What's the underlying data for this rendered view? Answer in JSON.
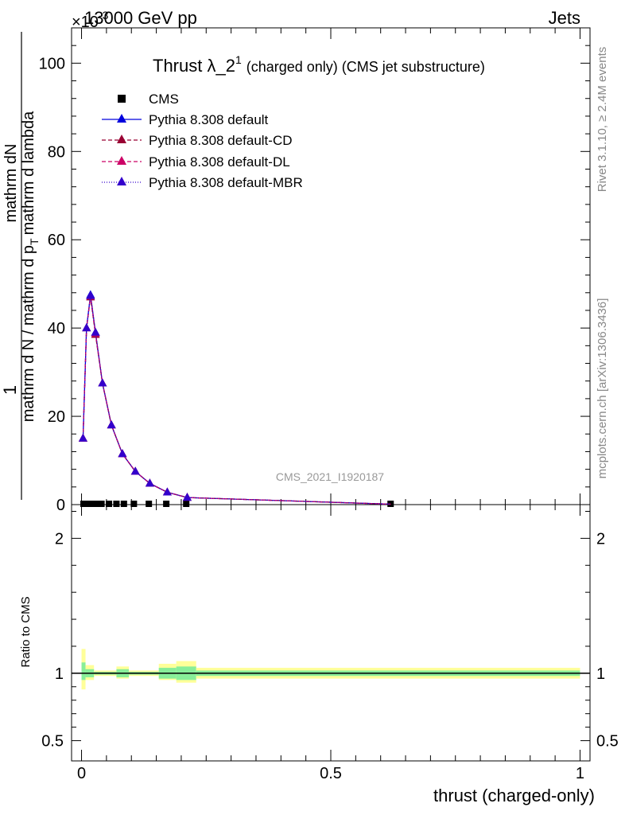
{
  "header": {
    "left": "13000 GeV pp",
    "right": "Jets",
    "exponent": "×10",
    "exponent_power": "-3"
  },
  "side_labels": {
    "rivet": "Rivet 3.1.10, ≥ 2.4M events",
    "mcplots": "mcplots.cern.ch [arXiv:1306.3436]"
  },
  "watermark": "CMS_2021_I1920187",
  "chart_data": [
    {
      "type": "line",
      "title": "Thrust λ_2",
      "title_sup": "1",
      "title_suffix": "(charged only) (CMS jet substructure)",
      "xlabel": "",
      "ylabel_num": "1",
      "ylabel_top": "mathrm d",
      "ylabel_top2": "N",
      "ylabel_bottom": "mathrm d N / mathrm d p",
      "ylabel_bottom2": "mathrm d p",
      "ylabel_bottom3": "mathrm d lambda",
      "ylabel_sub": "T",
      "ylabel_mid": "mathrm d",
      "xlim": [
        -0.02,
        1.02
      ],
      "ylim": [
        0,
        108
      ],
      "yticks": [
        0,
        20,
        40,
        60,
        80,
        100
      ],
      "yticklabels": [
        "0",
        "20",
        "40",
        "60",
        "80",
        "100"
      ],
      "legend": [
        "CMS",
        "Pythia 8.308 default",
        "Pythia 8.308 default-CD",
        "Pythia 8.308 default-DL",
        "Pythia 8.308 default-MBR"
      ],
      "legend_position": "top-left",
      "x": [
        0.004,
        0.01,
        0.02,
        0.03,
        0.04,
        0.055,
        0.07,
        0.085,
        0.105,
        0.135,
        0.17,
        0.21,
        0.62
      ],
      "series": [
        {
          "name": "CMS",
          "marker": "square",
          "color": "#000000",
          "x": [
            0.004,
            0.01,
            0.02,
            0.03,
            0.04,
            0.055,
            0.07,
            0.085,
            0.105,
            0.135,
            0.17,
            0.21,
            0.62
          ],
          "values": [
            0,
            0,
            0,
            0,
            0,
            0,
            0,
            0,
            0,
            0,
            0,
            0,
            0
          ]
        },
        {
          "name": "Pythia 8.308 default",
          "marker": "triangle",
          "color": "#0000dd",
          "dash": "",
          "x": [
            0.003,
            0.01,
            0.018,
            0.028,
            0.042,
            0.06,
            0.082,
            0.108,
            0.137,
            0.172,
            0.212,
            0.62
          ],
          "values": [
            15,
            40,
            47.5,
            39,
            27.5,
            18,
            11.5,
            7.5,
            4.8,
            2.8,
            1.6,
            0.1
          ]
        },
        {
          "name": "Pythia 8.308 default-CD",
          "marker": "triangle",
          "color": "#990033",
          "dash": "5,3",
          "x": [
            0.003,
            0.01,
            0.018,
            0.028,
            0.042,
            0.06,
            0.082,
            0.108,
            0.137,
            0.172,
            0.212,
            0.62
          ],
          "values": [
            15,
            40,
            47,
            38.5,
            27.5,
            18,
            11.5,
            7.5,
            4.8,
            2.8,
            1.6,
            0.1
          ]
        },
        {
          "name": "Pythia 8.308 default-DL",
          "marker": "triangle",
          "color": "#cc0066",
          "dash": "5,3",
          "x": [
            0.003,
            0.01,
            0.018,
            0.028,
            0.042,
            0.06,
            0.082,
            0.108,
            0.137,
            0.172,
            0.212,
            0.62
          ],
          "values": [
            15,
            40,
            47.2,
            38.8,
            27.5,
            18,
            11.5,
            7.5,
            4.8,
            2.8,
            1.6,
            0.1
          ]
        },
        {
          "name": "Pythia 8.308 default-MBR",
          "marker": "triangle",
          "color": "#3300cc",
          "dash": "1,2",
          "x": [
            0.003,
            0.01,
            0.018,
            0.028,
            0.042,
            0.06,
            0.082,
            0.108,
            0.137,
            0.172,
            0.212,
            0.62
          ],
          "values": [
            15,
            40,
            47.3,
            39,
            27.5,
            18,
            11.5,
            7.5,
            4.8,
            2.8,
            1.6,
            0.1
          ]
        }
      ]
    },
    {
      "type": "line",
      "title": "",
      "xlabel": "thrust (charged-only)",
      "ylabel": "Ratio to CMS",
      "xlim": [
        -0.02,
        1.02
      ],
      "ylim": [
        0.35,
        2.25
      ],
      "xticks": [
        0,
        0.5,
        1
      ],
      "xticklabels": [
        "0",
        "0.5",
        "1"
      ],
      "yticks": [
        0.5,
        1,
        2
      ],
      "yticklabels": [
        "0.5",
        "1",
        "2"
      ],
      "reference": 1,
      "bands": [
        {
          "x0": 0.0,
          "x1": 0.008,
          "yellow": [
            0.88,
            1.18
          ],
          "green": [
            0.95,
            1.08
          ]
        },
        {
          "x0": 0.008,
          "x1": 0.025,
          "yellow": [
            0.95,
            1.06
          ],
          "green": [
            0.97,
            1.03
          ]
        },
        {
          "x0": 0.025,
          "x1": 0.07,
          "yellow": [
            0.98,
            1.02
          ],
          "green": [
            0.99,
            1.01
          ]
        },
        {
          "x0": 0.07,
          "x1": 0.095,
          "yellow": [
            0.96,
            1.05
          ],
          "green": [
            0.97,
            1.03
          ]
        },
        {
          "x0": 0.095,
          "x1": 0.155,
          "yellow": [
            0.98,
            1.02
          ],
          "green": [
            0.99,
            1.01
          ]
        },
        {
          "x0": 0.155,
          "x1": 0.19,
          "yellow": [
            0.95,
            1.07
          ],
          "green": [
            0.96,
            1.04
          ]
        },
        {
          "x0": 0.19,
          "x1": 0.23,
          "yellow": [
            0.93,
            1.09
          ],
          "green": [
            0.95,
            1.05
          ]
        },
        {
          "x0": 0.23,
          "x1": 1.0,
          "yellow": [
            0.96,
            1.04
          ],
          "green": [
            0.98,
            1.02
          ]
        }
      ]
    }
  ],
  "colors": {
    "yellow_band": "#ffff99",
    "green_band": "#88ee99"
  }
}
